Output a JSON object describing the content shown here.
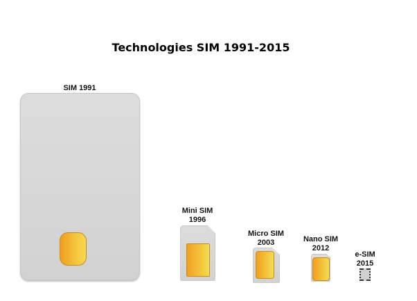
{
  "title": "Technologies SIM 1991-2015",
  "colors": {
    "card": "#d6d6d6",
    "chip_start": "#f0a020",
    "chip_end": "#f5dc50"
  },
  "sims": [
    {
      "name": "SIM 1991",
      "line1": "SIM 1991",
      "line2": ""
    },
    {
      "name": "Mini SIM",
      "line1": "Mini SIM",
      "line2": "1996"
    },
    {
      "name": "Micro SIM",
      "line1": "Micro SIM",
      "line2": "2003"
    },
    {
      "name": "Nano SIM",
      "line1": "Nano SIM",
      "line2": "2012"
    },
    {
      "name": "e-SIM",
      "line1": "e-SIM",
      "line2": "2015"
    }
  ]
}
